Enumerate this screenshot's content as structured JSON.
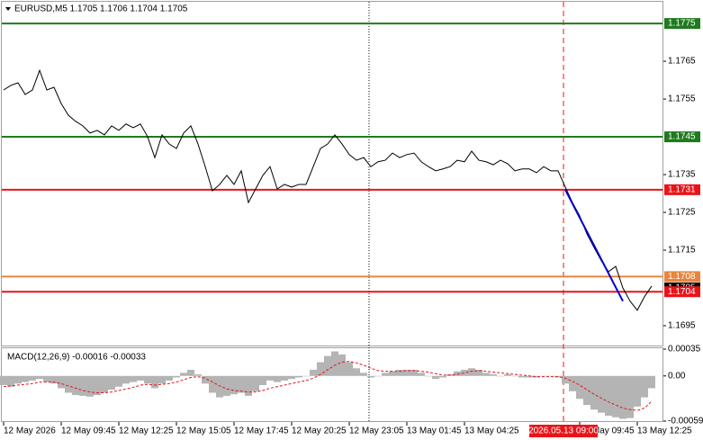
{
  "chart_data": [
    {
      "type": "line",
      "title": "EURUSD,M5  1.1705 1.1706 1.1704 1.1705",
      "color": "#000000",
      "values": [
        1.17574,
        1.17586,
        1.17593,
        1.17562,
        1.17574,
        1.17626,
        1.17574,
        1.17581,
        1.17538,
        1.17507,
        1.17491,
        1.17479,
        1.1746,
        1.17467,
        1.17455,
        1.17479,
        1.17467,
        1.17484,
        1.17474,
        1.17484,
        1.1745,
        1.17395,
        1.17455,
        1.17431,
        1.17419,
        1.1746,
        1.17479,
        1.17431,
        1.17371,
        1.17307,
        1.17324,
        1.17348,
        1.17324,
        1.1736,
        1.17276,
        1.17312,
        1.17348,
        1.17371,
        1.17312,
        1.17324,
        1.17317,
        1.17324,
        1.17324,
        1.17371,
        1.17419,
        1.17431,
        1.17455,
        1.17431,
        1.17403,
        1.17388,
        1.17395,
        1.17371,
        1.17384,
        1.17388,
        1.17407,
        1.17395,
        1.17403,
        1.17407,
        1.17384,
        1.17371,
        1.1736,
        1.17365,
        1.17371,
        1.17388,
        1.17384,
        1.17412,
        1.17388,
        1.17384,
        1.17376,
        1.17388,
        1.17379,
        1.1736,
        1.17365,
        1.17365,
        1.17355,
        1.17371,
        1.1736,
        1.1736,
        1.17317,
        1.17276,
        1.17241,
        1.17193,
        1.17157,
        1.17122,
        1.17093,
        1.17107,
        1.1705,
        1.17015,
        1.16991,
        1.17027,
        1.17055
      ],
      "xlim": [
        0,
        91.5
      ],
      "xticks": [
        {
          "value": 0,
          "label": "12 May 2026"
        },
        {
          "value": 8,
          "label": "12 May 09:45"
        },
        {
          "value": 16,
          "label": "12 May 12:25"
        },
        {
          "value": 24,
          "label": "12 May 15:05"
        },
        {
          "value": 32,
          "label": "12 May 17:45"
        },
        {
          "value": 40,
          "label": "12 May 20:25"
        },
        {
          "value": 48,
          "label": "12 May 23:05"
        },
        {
          "value": 56,
          "label": "13 May 01:45"
        },
        {
          "value": 64,
          "label": "13 May 04:25"
        },
        {
          "value": 80,
          "label": "13 May 09:45"
        },
        {
          "value": 88,
          "label": "13 May 12:25"
        }
      ],
      "ylim": [
        1.169,
        1.17805
      ],
      "yticks": [
        1.1765,
        1.1755,
        1.1735,
        1.1725,
        1.1715,
        1.1695
      ],
      "last_price": {
        "value": 1.1705,
        "color": "#000000"
      },
      "levels": [
        {
          "value": 1.1775,
          "color": "#1e7b1e"
        },
        {
          "value": 1.1745,
          "color": "#1e7b1e"
        },
        {
          "value": 1.1731,
          "color": "#e8141a"
        },
        {
          "value": 1.1708,
          "color": "#e8843c"
        },
        {
          "value": 1.1704,
          "color": "#e8141a"
        }
      ],
      "trend_line": {
        "x": [
          78,
          86
        ],
        "y": [
          1.1731,
          1.17015
        ],
        "color": "#0000cc"
      },
      "separator": {
        "x": 50.75,
        "color": "#000000"
      },
      "crosshair": {
        "x": 77.75,
        "label": "2026.05.13 09:00",
        "color": "#e8141a"
      }
    },
    {
      "type": "macd",
      "title": "MACD(12,26,9) -0.00016 -0.00033",
      "color": "#b4b4b4",
      "values": [
        -0.00012,
        -0.00014,
        -0.0001,
        -8e-05,
        -6e-05,
        -4e-05,
        -8e-05,
        -0.0001,
        -0.00016,
        -0.00022,
        -0.00025,
        -0.00026,
        -0.00027,
        -0.00025,
        -0.00022,
        -0.00018,
        -0.00014,
        -0.0001,
        -8e-05,
        -6e-05,
        -0.0001,
        -0.00016,
        -0.0001,
        -6e-05,
        -2e-05,
        4e-05,
        8e-05,
        2e-05,
        -0.0001,
        -0.00022,
        -0.00028,
        -0.00026,
        -0.00024,
        -0.00022,
        -0.00026,
        -0.0002,
        -0.00012,
        -6e-05,
        -8e-05,
        -6e-05,
        -4e-05,
        -2e-05,
        0,
        8e-05,
        0.00018,
        0.00026,
        0.00032,
        0.00028,
        0.00018,
        0.0001,
        4e-05,
        -2e-05,
        0,
        4e-05,
        6e-05,
        8e-05,
        8e-05,
        8e-05,
        4e-05,
        0,
        -4e-05,
        -2e-05,
        2e-05,
        6e-05,
        8e-05,
        0.0001,
        8e-05,
        4e-05,
        2e-05,
        0,
        2e-05,
        0,
        -2e-05,
        -2e-05,
        -2e-05,
        0,
        0,
        -2e-05,
        -0.0001,
        -0.0002,
        -0.0003,
        -0.00038,
        -0.00044,
        -0.00048,
        -0.00052,
        -0.00054,
        -0.00056,
        -0.00055,
        -0.0004,
        -0.00028,
        -0.00016
      ],
      "signal": {
        "color": "#e8141a",
        "values": [
          -0.00014,
          -0.00013,
          -0.00012,
          -0.00011,
          -0.0001,
          -8e-05,
          -8e-05,
          -8e-05,
          -0.0001,
          -0.00013,
          -0.00016,
          -0.00019,
          -0.00021,
          -0.00022,
          -0.00022,
          -0.00021,
          -0.00019,
          -0.00017,
          -0.00015,
          -0.00012,
          -0.00011,
          -0.00012,
          -0.00011,
          -0.0001,
          -8e-05,
          -5e-05,
          -2e-05,
          -1e-05,
          -3e-05,
          -8e-05,
          -0.00013,
          -0.00017,
          -0.00019,
          -0.0002,
          -0.00021,
          -0.00021,
          -0.00019,
          -0.00016,
          -0.00014,
          -0.00012,
          -0.0001,
          -8e-05,
          -6e-05,
          -3e-05,
          2e-05,
          8e-05,
          0.00014,
          0.00018,
          0.00019,
          0.00017,
          0.00014,
          0.0001,
          7e-05,
          6e-05,
          6e-05,
          6e-05,
          7e-05,
          7e-05,
          6e-05,
          5e-05,
          3e-05,
          1e-05,
          1e-05,
          2e-05,
          4e-05,
          6e-05,
          7e-05,
          6e-05,
          5e-05,
          4e-05,
          3e-05,
          2e-05,
          1e-05,
          0,
          -1e-05,
          -1e-05,
          -1e-05,
          -1e-05,
          -3e-05,
          -7e-05,
          -0.00012,
          -0.00018,
          -0.00024,
          -0.00029,
          -0.00034,
          -0.00038,
          -0.00042,
          -0.00044,
          -0.00045,
          -0.00042,
          -0.00033
        ]
      },
      "ylim": [
        -0.00059,
        0.00035
      ],
      "yticks": [
        0.00035,
        {
          "value": 0,
          "label": "0.00"
        },
        -0.00059
      ]
    }
  ]
}
